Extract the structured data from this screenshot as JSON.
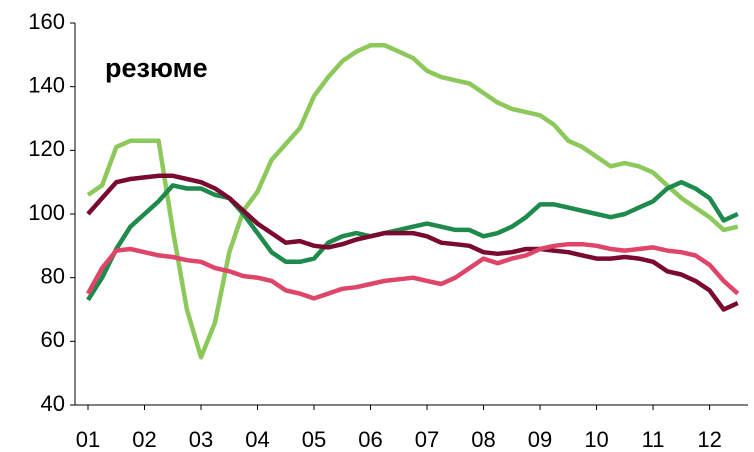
{
  "chart_data": {
    "type": "line",
    "title": "резюме",
    "x": [
      1,
      1.25,
      1.5,
      1.75,
      2,
      2.25,
      2.5,
      2.75,
      3,
      3.25,
      3.5,
      3.75,
      4,
      4.25,
      4.5,
      4.75,
      5,
      5.25,
      5.5,
      5.75,
      6,
      6.25,
      6.5,
      6.75,
      7,
      7.25,
      7.5,
      7.75,
      8,
      8.25,
      8.5,
      8.75,
      9,
      9.25,
      9.5,
      9.75,
      10,
      10.25,
      10.5,
      10.75,
      11,
      11.25,
      11.5,
      11.75,
      12,
      12.25,
      12.5
    ],
    "xlim": [
      0.77,
      12.68
    ],
    "xticks": [
      {
        "value": 1,
        "label": "01"
      },
      {
        "value": 2,
        "label": "02"
      },
      {
        "value": 3,
        "label": "03"
      },
      {
        "value": 4,
        "label": "04"
      },
      {
        "value": 5,
        "label": "05"
      },
      {
        "value": 6,
        "label": "06"
      },
      {
        "value": 7,
        "label": "07"
      },
      {
        "value": 8,
        "label": "08"
      },
      {
        "value": 9,
        "label": "09"
      },
      {
        "value": 10,
        "label": "10"
      },
      {
        "value": 11,
        "label": "11"
      },
      {
        "value": 12,
        "label": "12"
      }
    ],
    "ylim": [
      40,
      160
    ],
    "yticks": [
      40,
      60,
      80,
      100,
      120,
      140,
      160
    ],
    "grid": false,
    "series": [
      {
        "color": "#8cc85a",
        "values": [
          106,
          109,
          121,
          123,
          123,
          123,
          95,
          70,
          55,
          66,
          88,
          101,
          107,
          117,
          122,
          127,
          137,
          143,
          148,
          151,
          153,
          153,
          151,
          149,
          145,
          143,
          142,
          141,
          138,
          135,
          133,
          132,
          131,
          128,
          123,
          121,
          118,
          115,
          116,
          115,
          113,
          109,
          105,
          102,
          99,
          95,
          96
        ]
      },
      {
        "color": "#1e8a4c",
        "values": [
          73,
          80,
          89,
          96,
          100,
          104,
          109,
          108,
          108,
          106,
          105,
          100,
          94,
          88,
          85,
          85,
          86,
          91,
          93,
          94,
          93,
          94,
          95,
          96,
          97,
          96,
          95,
          95,
          93,
          94,
          96,
          99,
          103,
          103,
          102,
          101,
          100,
          99,
          100,
          102,
          104,
          108,
          110,
          108,
          105,
          98,
          100
        ]
      },
      {
        "color": "#7a0a30",
        "values": [
          100,
          105,
          110,
          111,
          111.5,
          112,
          112,
          111,
          110,
          108,
          105,
          101,
          97,
          94,
          91,
          91.5,
          90,
          89.5,
          90.5,
          92,
          93,
          94,
          94,
          94,
          93,
          91,
          90.5,
          90,
          88,
          87.5,
          88,
          89,
          89,
          88.5,
          88,
          87,
          86,
          86,
          86.5,
          86,
          85,
          82,
          81,
          79,
          76,
          70,
          72
        ]
      },
      {
        "color": "#df4568",
        "values": [
          75,
          83,
          88.5,
          89,
          88,
          87,
          86.5,
          85.5,
          85,
          83,
          82,
          80.5,
          80,
          79,
          76,
          75,
          73.5,
          75,
          76.5,
          77,
          78,
          79,
          79.5,
          80,
          79,
          78,
          80,
          83,
          86,
          84.5,
          86,
          87,
          89,
          90,
          90.5,
          90.5,
          90,
          89,
          88.5,
          89,
          89.5,
          88.5,
          88,
          87,
          84,
          79,
          75
        ]
      }
    ]
  }
}
